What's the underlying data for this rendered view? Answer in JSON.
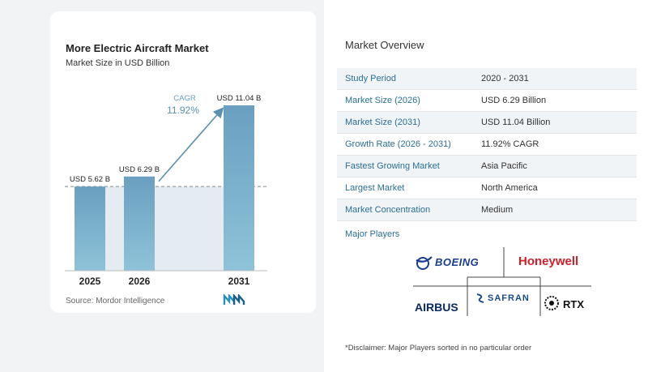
{
  "chart": {
    "title": "More Electric Aircraft Market",
    "subtitle": "Market Size in USD Billion",
    "source": "Source:  Mordor Intelligence"
  },
  "chart_data": {
    "type": "bar",
    "categories": [
      "2025",
      "2026",
      "2031"
    ],
    "values": [
      5.62,
      6.29,
      11.04
    ],
    "value_labels": [
      "USD 5.62 B",
      "USD 6.29 B",
      "USD 11.04 B"
    ],
    "cagr_label": "CAGR",
    "cagr_value": "11.92%",
    "ylim": [
      0,
      11.04
    ],
    "colors": {
      "bar_top": "#6a9fc0",
      "bar_bottom": "#8ec3d8",
      "band": "#e4ecf2",
      "arrow": "#5a8fb0"
    }
  },
  "overview": {
    "title": "Market Overview",
    "rows": [
      {
        "label": "Study Period",
        "value": "2020 - 2031"
      },
      {
        "label": "Market Size (2026)",
        "value": "USD 6.29 Billion"
      },
      {
        "label": "Market Size (2031)",
        "value": "USD 11.04 Billion"
      },
      {
        "label": "Growth Rate (2026 - 2031)",
        "value": "11.92% CAGR"
      },
      {
        "label": "Fastest Growing Market",
        "value": "Asia Pacific"
      },
      {
        "label": "Largest Market",
        "value": "North America"
      },
      {
        "label": "Market Concentration",
        "value": "Medium"
      }
    ],
    "players_title": "Major Players",
    "players": {
      "boeing": "BOEING",
      "honeywell": "Honeywell",
      "airbus": "AIRBUS",
      "safran": "SAFRAN",
      "rtx": "RTX"
    },
    "disclaimer": "*Disclaimer: Major Players sorted in no particular order"
  }
}
